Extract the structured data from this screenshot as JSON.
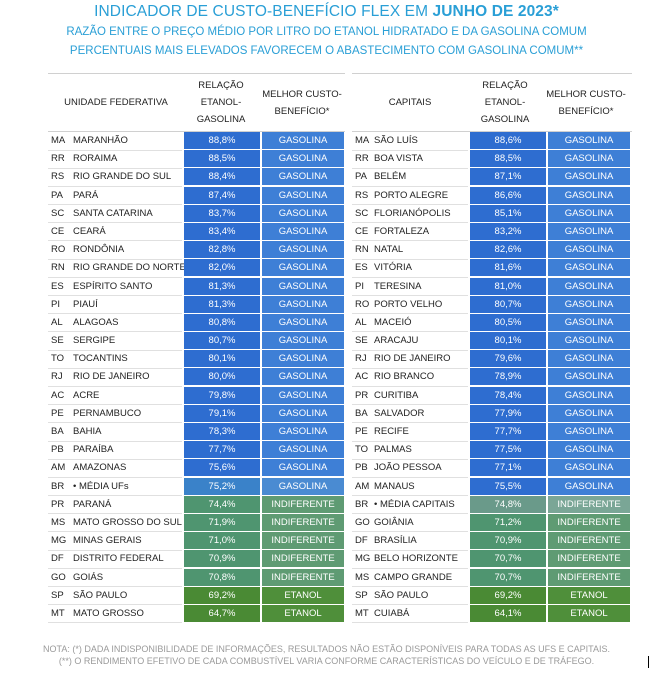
{
  "title_prefix": "INDICADOR  DE CUSTO-BENEFÍCIO FLEX EM ",
  "title_bold": "JUNHO DE 2023*",
  "subtitle_1": "RAZÃO ENTRE O PREÇO MÉDIO POR LITRO DO ETANOL HIDRATADO E DA GASOLINA COMUM",
  "subtitle_2": "PERCENTUAIS MAIS ELEVADOS FAVORECEM O ABASTECIMENTO COM GASOLINA COMUM**",
  "colors": {
    "gasolina_value": "#2e6dd0",
    "gasolina_label": "#3e7fd6",
    "indiferente": "#5f9b73",
    "etanol": "#4f8f3a"
  },
  "left_table": {
    "header": {
      "col_name": "UNIDADE FEDERATIVA",
      "col_ratio": "RELAÇÃO ETANOL-GASOLINA",
      "col_best": "MELHOR CUSTO-BENEFÍCIO*"
    },
    "rows": [
      {
        "code": "MA",
        "name": "MARANHÃO",
        "ratio": "88,8%",
        "best": "GASOLINA",
        "cat": "gasolina"
      },
      {
        "code": "RR",
        "name": "RORAIMA",
        "ratio": "88,5%",
        "best": "GASOLINA",
        "cat": "gasolina"
      },
      {
        "code": "RS",
        "name": "RIO GRANDE DO SUL",
        "ratio": "88,4%",
        "best": "GASOLINA",
        "cat": "gasolina"
      },
      {
        "code": "PA",
        "name": "PARÁ",
        "ratio": "87,4%",
        "best": "GASOLINA",
        "cat": "gasolina"
      },
      {
        "code": "SC",
        "name": "SANTA CATARINA",
        "ratio": "83,7%",
        "best": "GASOLINA",
        "cat": "gasolina"
      },
      {
        "code": "CE",
        "name": "CEARÁ",
        "ratio": "83,4%",
        "best": "GASOLINA",
        "cat": "gasolina"
      },
      {
        "code": "RO",
        "name": "RONDÔNIA",
        "ratio": "82,8%",
        "best": "GASOLINA",
        "cat": "gasolina"
      },
      {
        "code": "RN",
        "name": "RIO GRANDE DO NORTE",
        "ratio": "82,0%",
        "best": "GASOLINA",
        "cat": "gasolina"
      },
      {
        "code": "ES",
        "name": "ESPÍRITO SANTO",
        "ratio": "81,3%",
        "best": "GASOLINA",
        "cat": "gasolina"
      },
      {
        "code": "PI",
        "name": "PIAUÍ",
        "ratio": "81,3%",
        "best": "GASOLINA",
        "cat": "gasolina"
      },
      {
        "code": "AL",
        "name": "ALAGOAS",
        "ratio": "80,8%",
        "best": "GASOLINA",
        "cat": "gasolina"
      },
      {
        "code": "SE",
        "name": "SERGIPE",
        "ratio": "80,7%",
        "best": "GASOLINA",
        "cat": "gasolina"
      },
      {
        "code": "TO",
        "name": "TOCANTINS",
        "ratio": "80,1%",
        "best": "GASOLINA",
        "cat": "gasolina"
      },
      {
        "code": "RJ",
        "name": "RIO DE JANEIRO",
        "ratio": "80,0%",
        "best": "GASOLINA",
        "cat": "gasolina"
      },
      {
        "code": "AC",
        "name": "ACRE",
        "ratio": "79,8%",
        "best": "GASOLINA",
        "cat": "gasolina"
      },
      {
        "code": "PE",
        "name": "PERNAMBUCO",
        "ratio": "79,1%",
        "best": "GASOLINA",
        "cat": "gasolina"
      },
      {
        "code": "BA",
        "name": "BAHIA",
        "ratio": "78,3%",
        "best": "GASOLINA",
        "cat": "gasolina"
      },
      {
        "code": "PB",
        "name": "PARAÍBA",
        "ratio": "77,7%",
        "best": "GASOLINA",
        "cat": "gasolina"
      },
      {
        "code": "AM",
        "name": "AMAZONAS",
        "ratio": "75,6%",
        "best": "GASOLINA",
        "cat": "gasolina"
      },
      {
        "code": "BR",
        "name": "• MÉDIA UFs",
        "ratio": "75,2%",
        "best": "GASOLINA",
        "cat": "gasolina_avg"
      },
      {
        "code": "PR",
        "name": "PARANÁ",
        "ratio": "74,4%",
        "best": "INDIFERENTE",
        "cat": "indiferente"
      },
      {
        "code": "MS",
        "name": "MATO GROSSO DO SUL",
        "ratio": "71,9%",
        "best": "INDIFERENTE",
        "cat": "indiferente"
      },
      {
        "code": "MG",
        "name": "MINAS GERAIS",
        "ratio": "71,0%",
        "best": "INDIFERENTE",
        "cat": "indiferente"
      },
      {
        "code": "DF",
        "name": "DISTRITO FEDERAL",
        "ratio": "70,9%",
        "best": "INDIFERENTE",
        "cat": "indiferente"
      },
      {
        "code": "GO",
        "name": "GOIÁS",
        "ratio": "70,8%",
        "best": "INDIFERENTE",
        "cat": "indiferente"
      },
      {
        "code": "SP",
        "name": "SÃO PAULO",
        "ratio": "69,2%",
        "best": "ETANOL",
        "cat": "etanol"
      },
      {
        "code": "MT",
        "name": "MATO GROSSO",
        "ratio": "64,7%",
        "best": "ETANOL",
        "cat": "etanol"
      }
    ]
  },
  "right_table": {
    "header": {
      "col_name": "CAPITAIS",
      "col_ratio": "RELAÇÃO ETANOL-GASOLINA",
      "col_best": "MELHOR CUSTO-BENEFÍCIO*"
    },
    "rows": [
      {
        "code": "MA",
        "name": "SÃO LUÍS",
        "ratio": "88,6%",
        "best": "GASOLINA",
        "cat": "gasolina"
      },
      {
        "code": "RR",
        "name": "BOA VISTA",
        "ratio": "88,5%",
        "best": "GASOLINA",
        "cat": "gasolina"
      },
      {
        "code": "PA",
        "name": "BELÉM",
        "ratio": "87,1%",
        "best": "GASOLINA",
        "cat": "gasolina"
      },
      {
        "code": "RS",
        "name": "PORTO ALEGRE",
        "ratio": "86,6%",
        "best": "GASOLINA",
        "cat": "gasolina"
      },
      {
        "code": "SC",
        "name": "FLORIANÓPOLIS",
        "ratio": "85,1%",
        "best": "GASOLINA",
        "cat": "gasolina"
      },
      {
        "code": "CE",
        "name": "FORTALEZA",
        "ratio": "83,2%",
        "best": "GASOLINA",
        "cat": "gasolina"
      },
      {
        "code": "RN",
        "name": "NATAL",
        "ratio": "82,6%",
        "best": "GASOLINA",
        "cat": "gasolina"
      },
      {
        "code": "ES",
        "name": "VITÓRIA",
        "ratio": "81,6%",
        "best": "GASOLINA",
        "cat": "gasolina"
      },
      {
        "code": "PI",
        "name": "TERESINA",
        "ratio": "81,0%",
        "best": "GASOLINA",
        "cat": "gasolina"
      },
      {
        "code": "RO",
        "name": "PORTO VELHO",
        "ratio": "80,7%",
        "best": "GASOLINA",
        "cat": "gasolina"
      },
      {
        "code": "AL",
        "name": "MACEIÓ",
        "ratio": "80,5%",
        "best": "GASOLINA",
        "cat": "gasolina"
      },
      {
        "code": "SE",
        "name": "ARACAJU",
        "ratio": "80,1%",
        "best": "GASOLINA",
        "cat": "gasolina"
      },
      {
        "code": "RJ",
        "name": "RIO DE JANEIRO",
        "ratio": "79,6%",
        "best": "GASOLINA",
        "cat": "gasolina"
      },
      {
        "code": "AC",
        "name": "RIO BRANCO",
        "ratio": "78,9%",
        "best": "GASOLINA",
        "cat": "gasolina"
      },
      {
        "code": "PR",
        "name": "CURITIBA",
        "ratio": "78,4%",
        "best": "GASOLINA",
        "cat": "gasolina"
      },
      {
        "code": "BA",
        "name": "SALVADOR",
        "ratio": "77,9%",
        "best": "GASOLINA",
        "cat": "gasolina"
      },
      {
        "code": "PE",
        "name": "RECIFE",
        "ratio": "77,7%",
        "best": "GASOLINA",
        "cat": "gasolina"
      },
      {
        "code": "TO",
        "name": "PALMAS",
        "ratio": "77,5%",
        "best": "GASOLINA",
        "cat": "gasolina"
      },
      {
        "code": "PB",
        "name": "JOÃO PESSOA",
        "ratio": "77,1%",
        "best": "GASOLINA",
        "cat": "gasolina"
      },
      {
        "code": "AM",
        "name": "MANAUS",
        "ratio": "75,5%",
        "best": "GASOLINA",
        "cat": "gasolina"
      },
      {
        "code": "BR",
        "name": "• MÉDIA CAPITAIS",
        "ratio": "74,8%",
        "best": "INDIFERENTE",
        "cat": "indiferente_avg"
      },
      {
        "code": "GO",
        "name": "GOIÂNIA",
        "ratio": "71,2%",
        "best": "INDIFERENTE",
        "cat": "indiferente"
      },
      {
        "code": "DF",
        "name": "BRASÍLIA",
        "ratio": "70,9%",
        "best": "INDIFERENTE",
        "cat": "indiferente"
      },
      {
        "code": "MG",
        "name": "BELO HORIZONTE",
        "ratio": "70,7%",
        "best": "INDIFERENTE",
        "cat": "indiferente"
      },
      {
        "code": "MS",
        "name": "CAMPO GRANDE",
        "ratio": "70,7%",
        "best": "INDIFERENTE",
        "cat": "indiferente"
      },
      {
        "code": "SP",
        "name": "SÃO PAULO",
        "ratio": "69,2%",
        "best": "ETANOL",
        "cat": "etanol"
      },
      {
        "code": "MT",
        "name": "CUIABÁ",
        "ratio": "64,1%",
        "best": "ETANOL",
        "cat": "etanol"
      }
    ]
  },
  "note_1": "NOTA:  (*) DADA INDISPONIBILIDADE DE INFORMAÇÕES, RESULTADOS NÃO ESTÃO DISPONÍVEIS PARA TODAS AS UFS E CAPITAIS.",
  "note_2": "(**) O RENDIMENTO EFETIVO DE CADA COMBUSTÍVEL VARIA CONFORME CARACTERÍSTICAS DO VEÍCULO E DE TRÁFEGO."
}
